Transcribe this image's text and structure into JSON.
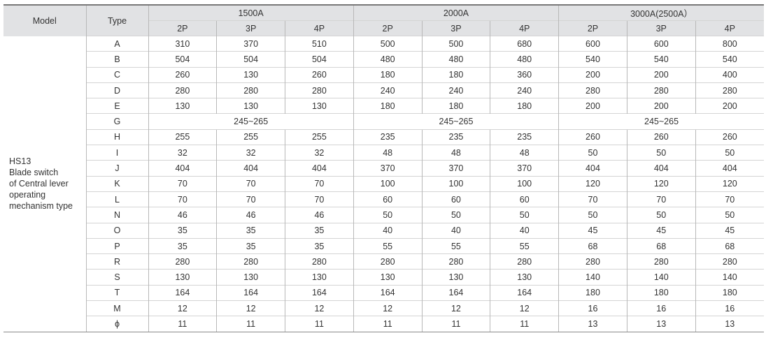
{
  "header": {
    "model": "Model",
    "type": "Type",
    "groups": [
      "1500A",
      "2000A",
      "3000A(2500A）"
    ],
    "poles": [
      "2P",
      "3P",
      "4P",
      "2P",
      "3P",
      "4P",
      "2P",
      "3P",
      "4P"
    ]
  },
  "model_lines": [
    "HS13",
    "Blade switch",
    "of Central lever",
    "operating",
    "mechanism type"
  ],
  "rows": [
    {
      "type": "A",
      "values": [
        "310",
        "370",
        "510",
        "500",
        "500",
        "680",
        "600",
        "600",
        "800"
      ]
    },
    {
      "type": "B",
      "values": [
        "504",
        "504",
        "504",
        "480",
        "480",
        "480",
        "540",
        "540",
        "540"
      ]
    },
    {
      "type": "C",
      "values": [
        "260",
        "130",
        "260",
        "180",
        "180",
        "360",
        "200",
        "200",
        "400"
      ]
    },
    {
      "type": "D",
      "values": [
        "280",
        "280",
        "280",
        "240",
        "240",
        "240",
        "280",
        "280",
        "280"
      ]
    },
    {
      "type": "E",
      "values": [
        "130",
        "130",
        "130",
        "180",
        "180",
        "180",
        "200",
        "200",
        "200"
      ]
    },
    {
      "type": "G",
      "merged": [
        "245~265",
        "245~265",
        "245~265"
      ]
    },
    {
      "type": "H",
      "values": [
        "255",
        "255",
        "255",
        "235",
        "235",
        "235",
        "260",
        "260",
        "260"
      ]
    },
    {
      "type": "I",
      "values": [
        "32",
        "32",
        "32",
        "48",
        "48",
        "48",
        "50",
        "50",
        "50"
      ]
    },
    {
      "type": "J",
      "values": [
        "404",
        "404",
        "404",
        "370",
        "370",
        "370",
        "404",
        "404",
        "404"
      ]
    },
    {
      "type": "K",
      "values": [
        "70",
        "70",
        "70",
        "100",
        "100",
        "100",
        "120",
        "120",
        "120"
      ]
    },
    {
      "type": "L",
      "values": [
        "70",
        "70",
        "70",
        "60",
        "60",
        "60",
        "70",
        "70",
        "70"
      ]
    },
    {
      "type": "N",
      "values": [
        "46",
        "46",
        "46",
        "50",
        "50",
        "50",
        "50",
        "50",
        "50"
      ]
    },
    {
      "type": "O",
      "values": [
        "35",
        "35",
        "35",
        "40",
        "40",
        "40",
        "45",
        "45",
        "45"
      ]
    },
    {
      "type": "P",
      "values": [
        "35",
        "35",
        "35",
        "55",
        "55",
        "55",
        "68",
        "68",
        "68"
      ]
    },
    {
      "type": "R",
      "values": [
        "280",
        "280",
        "280",
        "280",
        "280",
        "280",
        "280",
        "280",
        "280"
      ]
    },
    {
      "type": "S",
      "values": [
        "130",
        "130",
        "130",
        "130",
        "130",
        "130",
        "140",
        "140",
        "140"
      ]
    },
    {
      "type": "T",
      "values": [
        "164",
        "164",
        "164",
        "164",
        "164",
        "164",
        "180",
        "180",
        "180"
      ]
    },
    {
      "type": "M",
      "values": [
        "12",
        "12",
        "12",
        "12",
        "12",
        "12",
        "16",
        "16",
        "16"
      ]
    },
    {
      "type": "ϕ",
      "values": [
        "11",
        "11",
        "11",
        "11",
        "11",
        "11",
        "13",
        "13",
        "13"
      ]
    }
  ]
}
